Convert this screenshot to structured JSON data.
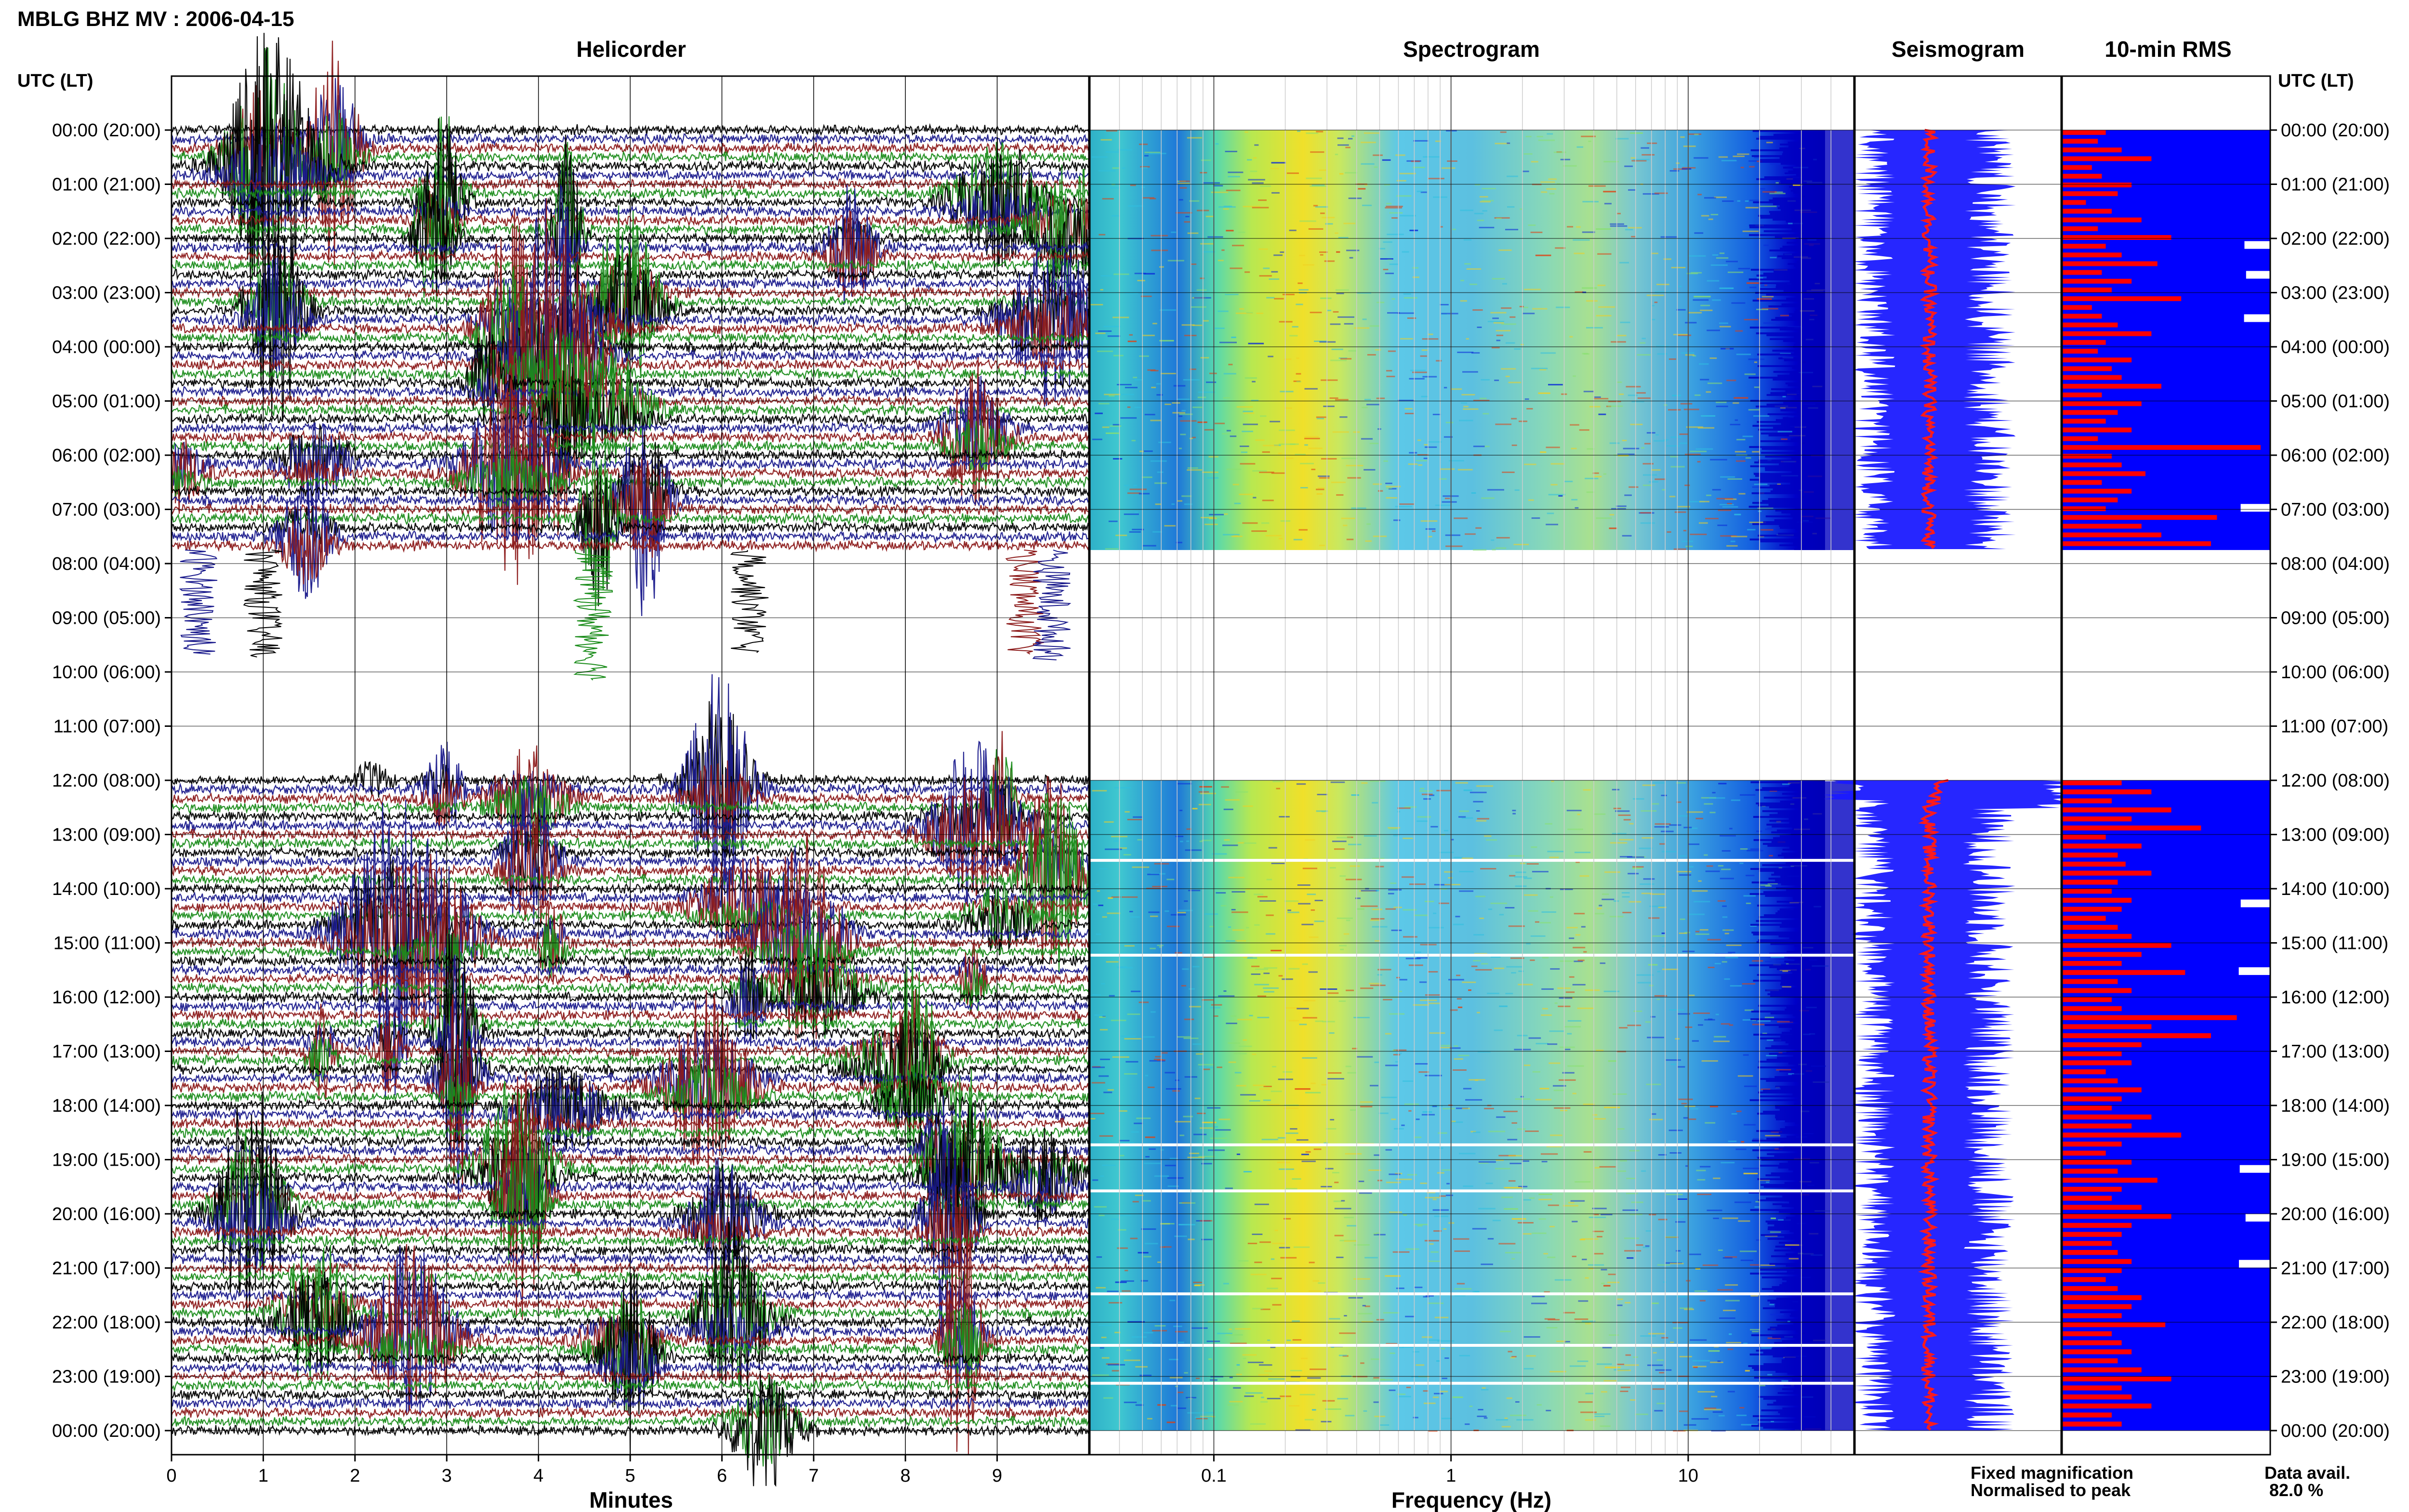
{
  "figure": {
    "title": "MBLG BHZ MV : 2006-04-15",
    "left_header": "UTC (LT)",
    "right_header": "UTC (LT)"
  },
  "panels": {
    "helicorder_title": "Helicorder",
    "spectrogram_title": "Spectrogram",
    "seismogram_title": "Seismogram",
    "rms_title": "10-min RMS",
    "helicorder_xlabel": "Minutes",
    "spectrogram_xlabel": "Frequency (Hz)"
  },
  "legend": {
    "fixed": "Fixed magnification",
    "normalised": "Normalised to peak",
    "fixed_color": "#1a1aff",
    "normalised_color": "#ff1a1a",
    "data_avail_label": "Data avail.",
    "data_avail_value": "82.0 %"
  },
  "colors": {
    "trace_cycle": [
      "#000000",
      "#1a1a8c",
      "#8c1a1a",
      "#1a8c1a"
    ],
    "rms_background": "#0000ff",
    "rms_bar": "#ff0000"
  },
  "chart_data": {
    "type": "heatmap",
    "time_axis_labels": [
      "00:00 (20:00)",
      "01:00 (21:00)",
      "02:00 (22:00)",
      "03:00 (23:00)",
      "04:00 (00:00)",
      "05:00 (01:00)",
      "06:00 (02:00)",
      "07:00 (03:00)",
      "08:00 (04:00)",
      "09:00 (05:00)",
      "10:00 (06:00)",
      "11:00 (07:00)",
      "12:00 (08:00)",
      "13:00 (09:00)",
      "14:00 (10:00)",
      "15:00 (11:00)",
      "16:00 (12:00)",
      "17:00 (13:00)",
      "18:00 (14:00)",
      "19:00 (15:00)",
      "20:00 (16:00)",
      "21:00 (17:00)",
      "22:00 (18:00)",
      "23:00 (19:00)",
      "00:00 (20:00)"
    ],
    "helicorder": {
      "x_ticks": [
        "0",
        "1",
        "2",
        "3",
        "4",
        "5",
        "6",
        "7",
        "8",
        "9"
      ],
      "xlim": [
        0,
        10
      ],
      "xlabel": "Minutes",
      "rows_per_hour": 6,
      "data_gap_hours": [
        7.75,
        12.0
      ]
    },
    "spectrogram": {
      "x_ticks": [
        "0.1",
        "1",
        "10"
      ],
      "x_scale": "log",
      "xlim_hz": [
        0.03,
        50
      ],
      "xlabel": "Frequency (Hz)",
      "data_gap_hours": [
        7.75,
        12.0
      ]
    },
    "rms": {
      "bar_values_relative": [
        0.22,
        0.18,
        0.3,
        0.45,
        0.15,
        0.2,
        0.35,
        0.28,
        0.12,
        0.25,
        0.4,
        0.18,
        0.55,
        0.22,
        0.3,
        0.48,
        0.2,
        0.35,
        0.25,
        0.6,
        0.15,
        0.2,
        0.28,
        0.45,
        0.22,
        0.18,
        0.35,
        0.25,
        0.3,
        0.5,
        0.2,
        0.4,
        0.28,
        0.22,
        0.35,
        0.18,
        1.0,
        0.25,
        0.3,
        0.42,
        0.2,
        0.35,
        0.28,
        0.22,
        0.78,
        0.4,
        0.5,
        0.75
      ],
      "bar_values_relative_pm": [
        0.3,
        0.45,
        0.25,
        0.55,
        0.35,
        0.7,
        0.22,
        0.4,
        0.28,
        0.32,
        0.45,
        0.28,
        0.25,
        0.35,
        0.3,
        0.22,
        0.28,
        0.35,
        0.55,
        0.4,
        0.3,
        0.62,
        0.28,
        0.35,
        0.25,
        0.3,
        0.88,
        0.45,
        0.75,
        0.4,
        0.3,
        0.35,
        0.22,
        0.28,
        0.4,
        0.3,
        0.25,
        0.45,
        0.35,
        0.6,
        0.3,
        0.22,
        0.35,
        0.28,
        0.48,
        0.3,
        0.25,
        0.4,
        0.55,
        0.35,
        0.3,
        0.25,
        0.28,
        0.35,
        0.3,
        0.22,
        0.28,
        0.4,
        0.35,
        0.3,
        0.52,
        0.25,
        0.3,
        0.35,
        0.28,
        0.4,
        0.55,
        0.3,
        0.35,
        0.45,
        0.25,
        0.3
      ]
    }
  }
}
